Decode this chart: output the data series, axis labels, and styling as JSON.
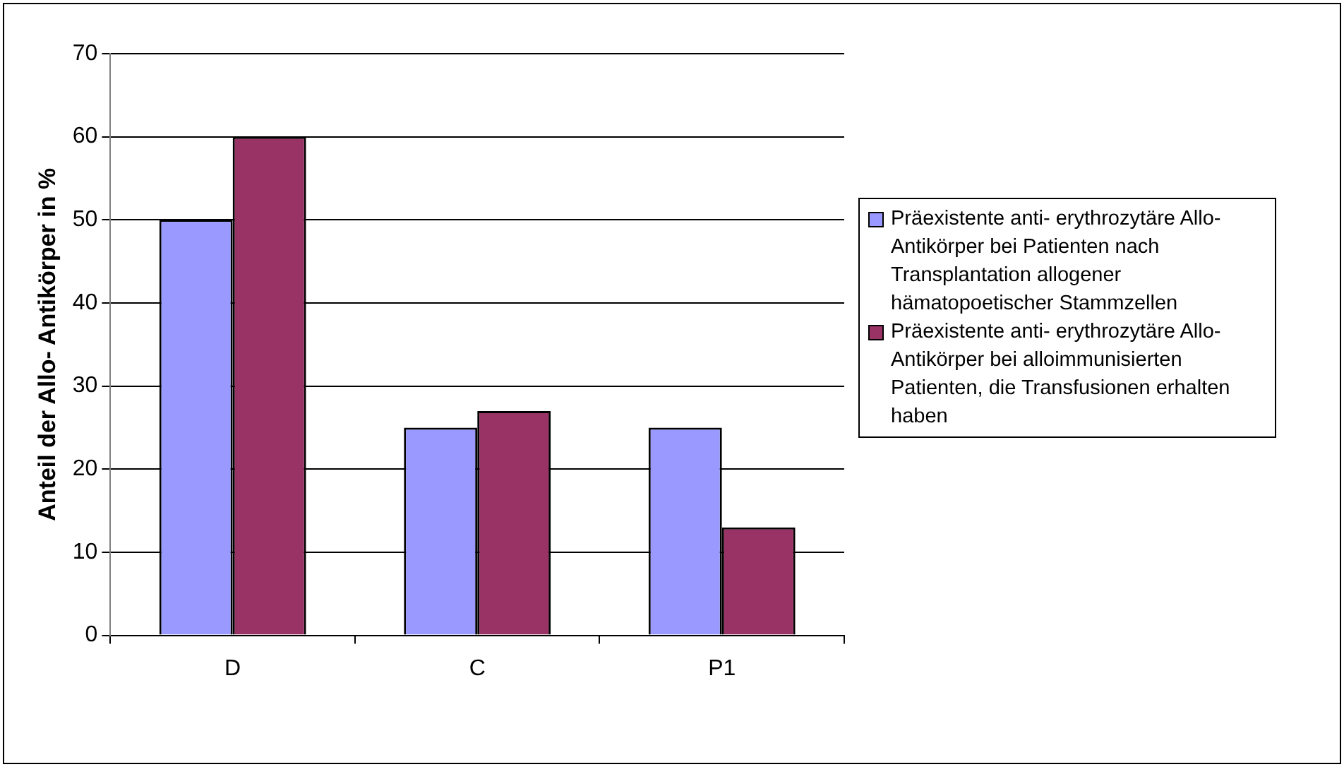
{
  "chart_data": {
    "type": "bar",
    "ylabel": "Anteil der Allo- Antikörper in %",
    "categories": [
      "D",
      "C",
      "P1"
    ],
    "series": [
      {
        "name": "Präexistente anti- erythrozytäre Allo- Antikörper bei Patienten nach Transplantation allogener hämatopoetischer Stammzellen",
        "color": "#9999ff",
        "values": [
          50,
          25,
          25
        ]
      },
      {
        "name": "Präexistente anti- erythrozytäre Allo- Antikörper bei alloimmunisierten Patienten, die Transfusionen erhalten haben",
        "color": "#993366",
        "values": [
          60,
          27,
          13
        ]
      }
    ],
    "ylim": [
      0,
      70
    ],
    "yticks": [
      0,
      10,
      20,
      30,
      40,
      50,
      60,
      70
    ],
    "grid": "y",
    "legend": "right"
  }
}
